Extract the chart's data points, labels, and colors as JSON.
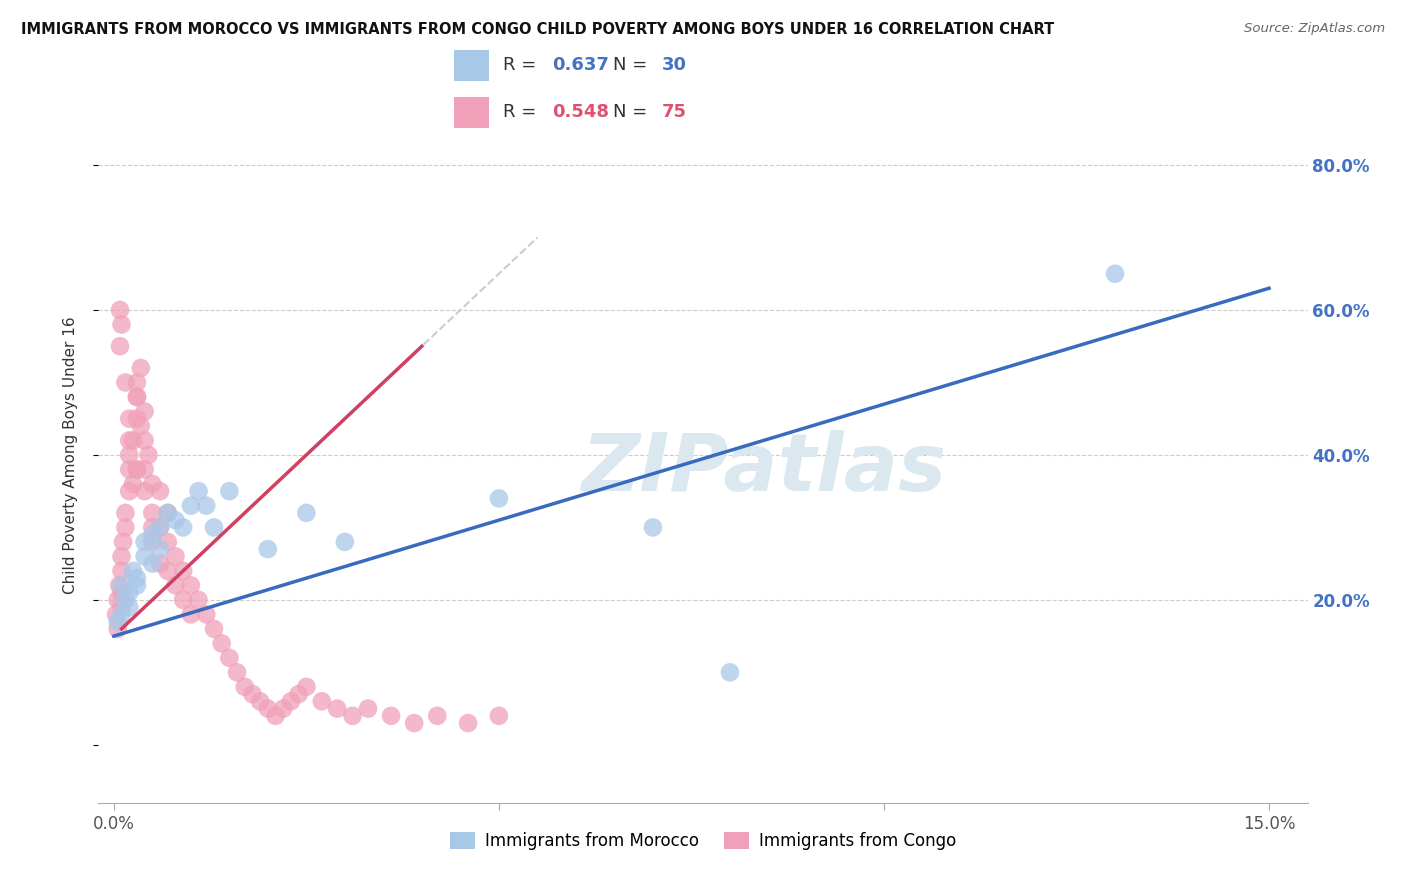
{
  "title": "IMMIGRANTS FROM MOROCCO VS IMMIGRANTS FROM CONGO CHILD POVERTY AMONG BOYS UNDER 16 CORRELATION CHART",
  "source": "Source: ZipAtlas.com",
  "ylabel": "Child Poverty Among Boys Under 16",
  "xlim": [
    -0.002,
    0.155
  ],
  "ylim": [
    -0.08,
    0.88
  ],
  "xticks": [
    0.0,
    0.05,
    0.1,
    0.15
  ],
  "xtick_labels": [
    "0.0%",
    "",
    "",
    "15.0%"
  ],
  "yticks": [
    0.0,
    0.2,
    0.4,
    0.6,
    0.8
  ],
  "ytick_labels_right": [
    "",
    "20.0%",
    "40.0%",
    "60.0%",
    "80.0%"
  ],
  "morocco_color": "#a8c8e8",
  "congo_color": "#f0a0b8",
  "morocco_line_color": "#3a6abf",
  "congo_line_color": "#d04060",
  "congo_line_dashed_color": "#e8b0c0",
  "watermark": "ZIPatlas",
  "watermark_color": "#dce8f0",
  "morocco_scatter_x": [
    0.0005,
    0.001,
    0.001,
    0.0015,
    0.002,
    0.002,
    0.0025,
    0.003,
    0.003,
    0.004,
    0.004,
    0.005,
    0.005,
    0.006,
    0.006,
    0.007,
    0.008,
    0.009,
    0.01,
    0.011,
    0.012,
    0.013,
    0.015,
    0.02,
    0.025,
    0.03,
    0.05,
    0.07,
    0.08,
    0.13
  ],
  "morocco_scatter_y": [
    0.17,
    0.18,
    0.22,
    0.2,
    0.19,
    0.21,
    0.24,
    0.22,
    0.23,
    0.26,
    0.28,
    0.25,
    0.29,
    0.27,
    0.3,
    0.32,
    0.31,
    0.3,
    0.33,
    0.35,
    0.33,
    0.3,
    0.35,
    0.27,
    0.32,
    0.28,
    0.34,
    0.3,
    0.1,
    0.65
  ],
  "congo_scatter_x": [
    0.0003,
    0.0005,
    0.0005,
    0.0007,
    0.001,
    0.001,
    0.001,
    0.001,
    0.0012,
    0.0015,
    0.0015,
    0.002,
    0.002,
    0.002,
    0.0025,
    0.0025,
    0.003,
    0.003,
    0.003,
    0.003,
    0.0035,
    0.0035,
    0.004,
    0.004,
    0.004,
    0.0045,
    0.005,
    0.005,
    0.005,
    0.006,
    0.006,
    0.006,
    0.007,
    0.007,
    0.007,
    0.008,
    0.008,
    0.009,
    0.009,
    0.01,
    0.01,
    0.011,
    0.012,
    0.013,
    0.014,
    0.015,
    0.016,
    0.017,
    0.018,
    0.019,
    0.02,
    0.021,
    0.022,
    0.023,
    0.024,
    0.025,
    0.027,
    0.029,
    0.031,
    0.033,
    0.036,
    0.039,
    0.042,
    0.046,
    0.05,
    0.0008,
    0.0008,
    0.001,
    0.0015,
    0.002,
    0.002,
    0.003,
    0.003,
    0.004,
    0.005
  ],
  "congo_scatter_y": [
    0.18,
    0.16,
    0.2,
    0.22,
    0.24,
    0.26,
    0.19,
    0.21,
    0.28,
    0.3,
    0.32,
    0.35,
    0.38,
    0.4,
    0.42,
    0.36,
    0.45,
    0.48,
    0.38,
    0.5,
    0.44,
    0.52,
    0.42,
    0.46,
    0.38,
    0.4,
    0.36,
    0.32,
    0.28,
    0.3,
    0.35,
    0.25,
    0.32,
    0.28,
    0.24,
    0.26,
    0.22,
    0.24,
    0.2,
    0.22,
    0.18,
    0.2,
    0.18,
    0.16,
    0.14,
    0.12,
    0.1,
    0.08,
    0.07,
    0.06,
    0.05,
    0.04,
    0.05,
    0.06,
    0.07,
    0.08,
    0.06,
    0.05,
    0.04,
    0.05,
    0.04,
    0.03,
    0.04,
    0.03,
    0.04,
    0.55,
    0.6,
    0.58,
    0.5,
    0.45,
    0.42,
    0.48,
    0.38,
    0.35,
    0.3
  ]
}
